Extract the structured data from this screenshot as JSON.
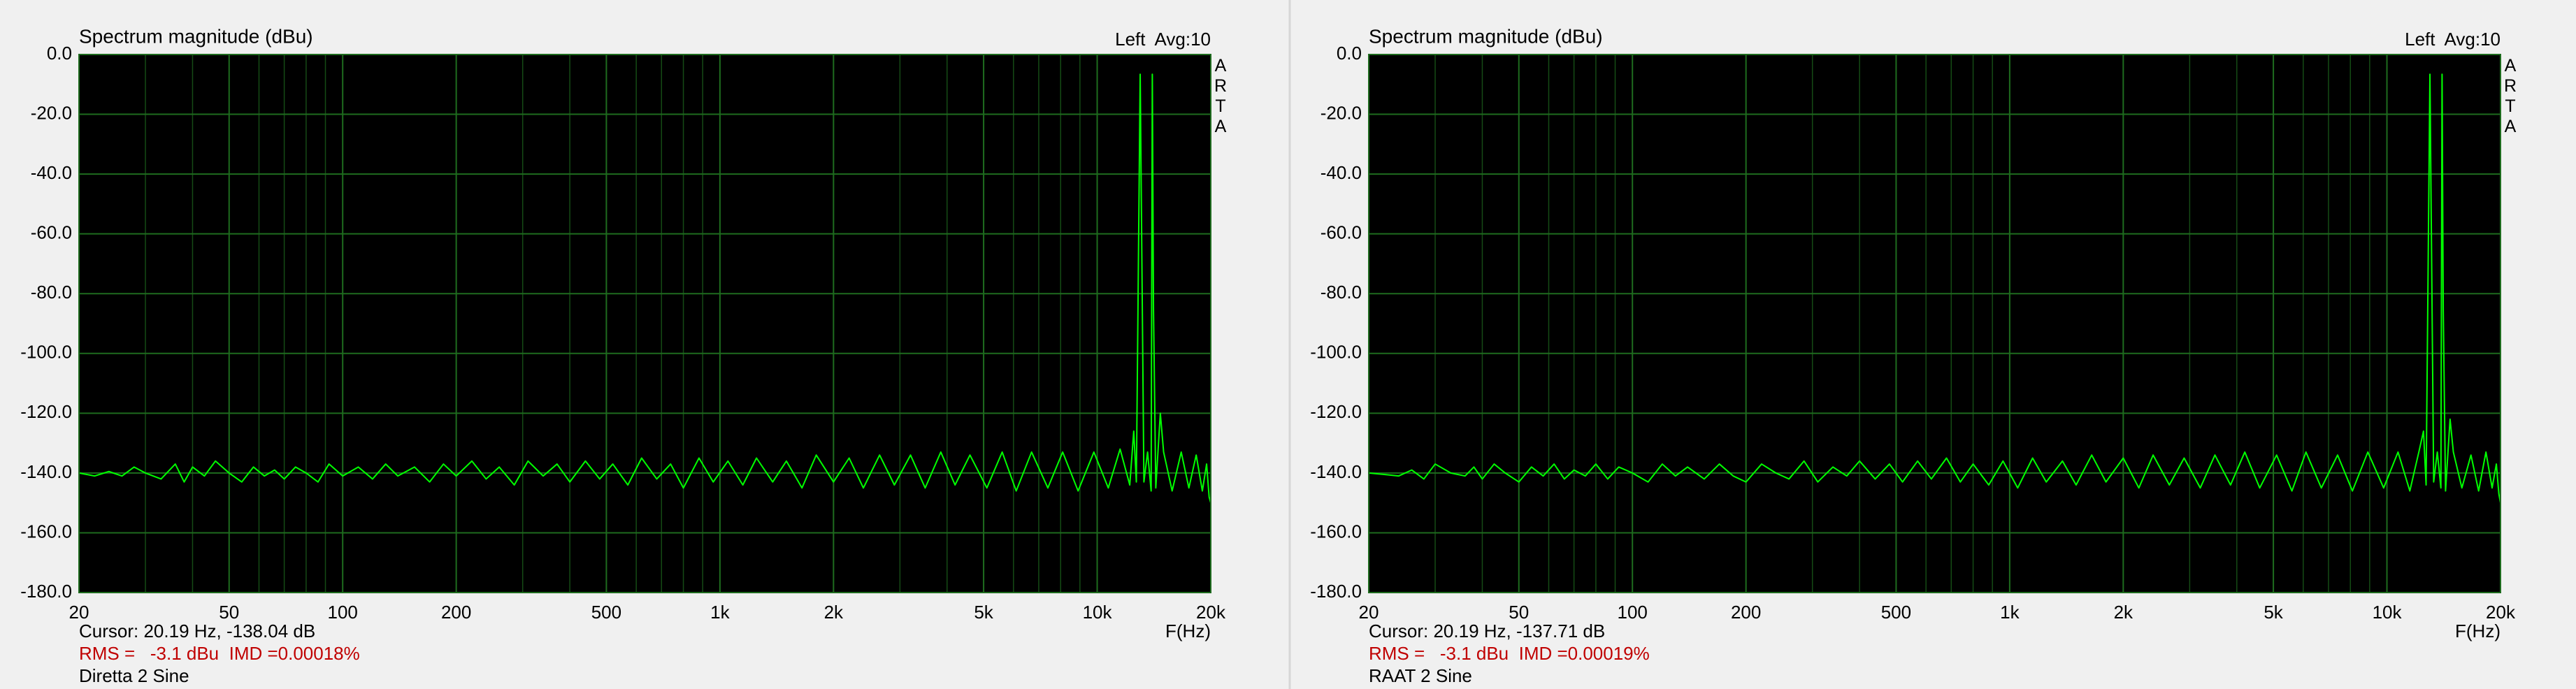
{
  "chart_data": [
    {
      "type": "line",
      "title": "Spectrum magnitude (dBu)",
      "channel_label": "Left  Avg:10",
      "watermark": "ARTA",
      "x_label": "F(Hz)",
      "xscale": "log",
      "grid": true,
      "minor_grid": true,
      "background": "#000000",
      "grid_color": "#1e6b1e",
      "xlim": [
        20,
        20000
      ],
      "xticks": [
        20,
        50,
        100,
        200,
        500,
        {
          "value": 1000,
          "label": "1k"
        },
        {
          "value": 2000,
          "label": "2k"
        },
        {
          "value": 5000,
          "label": "5k"
        },
        {
          "value": 10000,
          "label": "10k"
        },
        {
          "value": 20000,
          "label": "20k"
        }
      ],
      "ylim": [
        -180,
        0
      ],
      "yticks": [
        {
          "value": 0,
          "label": "0.0"
        },
        {
          "value": -20,
          "label": "-20.0"
        },
        {
          "value": -40,
          "label": "-40.0"
        },
        {
          "value": -60,
          "label": "-60.0"
        },
        {
          "value": -80,
          "label": "-80.0"
        },
        {
          "value": -100,
          "label": "-100.0"
        },
        {
          "value": -120,
          "label": "-120.0"
        },
        {
          "value": -140,
          "label": "-140.0"
        },
        {
          "value": -160,
          "label": "-160.0"
        },
        {
          "value": -180,
          "label": "-180.0"
        }
      ],
      "x": [
        20,
        22,
        24,
        26,
        28,
        30,
        33,
        36,
        38,
        40,
        43,
        46,
        50,
        54,
        58,
        62,
        66,
        70,
        75,
        80,
        86,
        92,
        100,
        110,
        120,
        130,
        140,
        155,
        170,
        185,
        200,
        220,
        240,
        260,
        285,
        310,
        340,
        370,
        400,
        440,
        480,
        520,
        570,
        620,
        680,
        740,
        800,
        880,
        960,
        1050,
        1150,
        1250,
        1380,
        1500,
        1650,
        1800,
        2000,
        2200,
        2400,
        2650,
        2900,
        3200,
        3500,
        3850,
        4200,
        4600,
        5100,
        5600,
        6100,
        6700,
        7400,
        8100,
        8900,
        9800,
        10700,
        11500,
        12200,
        12500,
        12700,
        13000,
        13300,
        13600,
        13900,
        14000,
        14100,
        14300,
        14700,
        15000,
        15800,
        16700,
        17500,
        18300,
        19000,
        19500,
        19800,
        20000
      ],
      "series": [
        {
          "color": "#00ff00",
          "values": [
            -140,
            -141,
            -139.5,
            -141,
            -138,
            -140,
            -142,
            -137,
            -143,
            -138,
            -141,
            -136,
            -140,
            -143,
            -138,
            -141,
            -139,
            -142,
            -138,
            -140,
            -143,
            -137,
            -141,
            -138,
            -142,
            -137,
            -141,
            -138,
            -143,
            -137,
            -141,
            -136,
            -142,
            -138,
            -144,
            -136,
            -141,
            -137,
            -143,
            -136,
            -142,
            -137,
            -144,
            -135,
            -142,
            -137,
            -145,
            -135,
            -143,
            -136,
            -144,
            -135,
            -143,
            -136,
            -145,
            -134,
            -143,
            -135,
            -145,
            -134,
            -144,
            -134,
            -145,
            -133,
            -144,
            -134,
            -145,
            -133,
            -146,
            -133,
            -145,
            -133,
            -146,
            -133,
            -145,
            -132,
            -144,
            -126,
            -143,
            -6.6,
            -143,
            -133,
            -146,
            -6.6,
            -85,
            -145,
            -120,
            -133,
            -146,
            -133,
            -145,
            -134,
            -146,
            -137,
            -148,
            -150
          ]
        }
      ],
      "annotations": [
        {
          "text": "Cursor: 20.19 Hz, -138.04 dB",
          "color": "#000000"
        },
        {
          "text": "RMS =   -3.1 dBu  IMD =0.00018%",
          "color": "#c00000"
        },
        {
          "text": "Diretta 2 Sine",
          "color": "#000000"
        }
      ]
    },
    {
      "type": "line",
      "title": "Spectrum magnitude (dBu)",
      "channel_label": "Left  Avg:10",
      "watermark": "ARTA",
      "x_label": "F(Hz)",
      "xscale": "log",
      "grid": true,
      "minor_grid": true,
      "background": "#000000",
      "grid_color": "#1e6b1e",
      "xlim": [
        20,
        20000
      ],
      "xticks": [
        20,
        50,
        100,
        200,
        500,
        {
          "value": 1000,
          "label": "1k"
        },
        {
          "value": 2000,
          "label": "2k"
        },
        {
          "value": 5000,
          "label": "5k"
        },
        {
          "value": 10000,
          "label": "10k"
        },
        {
          "value": 20000,
          "label": "20k"
        }
      ],
      "ylim": [
        -180,
        0
      ],
      "yticks": [
        {
          "value": 0,
          "label": "0.0"
        },
        {
          "value": -20,
          "label": "-20.0"
        },
        {
          "value": -40,
          "label": "-40.0"
        },
        {
          "value": -60,
          "label": "-60.0"
        },
        {
          "value": -80,
          "label": "-80.0"
        },
        {
          "value": -100,
          "label": "-100.0"
        },
        {
          "value": -120,
          "label": "-120.0"
        },
        {
          "value": -140,
          "label": "-140.0"
        },
        {
          "value": -160,
          "label": "-160.0"
        },
        {
          "value": -180,
          "label": "-180.0"
        }
      ],
      "x": [
        20,
        22,
        24,
        26,
        28,
        30,
        33,
        36,
        38,
        40,
        43,
        46,
        50,
        54,
        58,
        62,
        66,
        70,
        75,
        80,
        86,
        92,
        100,
        110,
        120,
        130,
        140,
        155,
        170,
        185,
        200,
        220,
        240,
        260,
        285,
        310,
        340,
        370,
        400,
        440,
        480,
        520,
        570,
        620,
        680,
        740,
        800,
        880,
        960,
        1050,
        1150,
        1250,
        1380,
        1500,
        1650,
        1800,
        2000,
        2200,
        2400,
        2650,
        2900,
        3200,
        3500,
        3850,
        4200,
        4600,
        5100,
        5600,
        6100,
        6700,
        7400,
        8100,
        8900,
        9800,
        10700,
        11500,
        12200,
        12500,
        12700,
        13000,
        13300,
        13600,
        13900,
        14000,
        14100,
        14300,
        14700,
        15000,
        15800,
        16700,
        17500,
        18300,
        19000,
        19500,
        19800,
        20000
      ],
      "series": [
        {
          "color": "#00ff00",
          "values": [
            -140,
            -140.5,
            -141,
            -139,
            -142,
            -137,
            -140,
            -141,
            -138,
            -142,
            -137,
            -140,
            -143,
            -138,
            -141,
            -137,
            -142,
            -139,
            -141,
            -137,
            -142,
            -138,
            -140,
            -143,
            -137,
            -141,
            -138,
            -142,
            -137,
            -141,
            -143,
            -137,
            -140,
            -142,
            -136,
            -143,
            -138,
            -141,
            -136,
            -142,
            -137,
            -143,
            -136,
            -142,
            -135,
            -143,
            -137,
            -144,
            -136,
            -145,
            -135,
            -143,
            -136,
            -144,
            -134,
            -143,
            -135,
            -145,
            -134,
            -144,
            -135,
            -145,
            -134,
            -144,
            -133,
            -145,
            -134,
            -146,
            -133,
            -145,
            -134,
            -146,
            -133,
            -145,
            -133,
            -146,
            -132,
            -126,
            -144,
            -6.6,
            -143,
            -133,
            -145,
            -6.6,
            -85,
            -146,
            -122,
            -133,
            -145,
            -134,
            -146,
            -133,
            -145,
            -137,
            -147,
            -150
          ]
        }
      ],
      "annotations": [
        {
          "text": "Cursor: 20.19 Hz, -137.71 dB",
          "color": "#000000"
        },
        {
          "text": "RMS =   -3.1 dBu  IMD =0.00019%",
          "color": "#c00000"
        },
        {
          "text": "RAAT 2 Sine",
          "color": "#000000"
        }
      ]
    }
  ]
}
